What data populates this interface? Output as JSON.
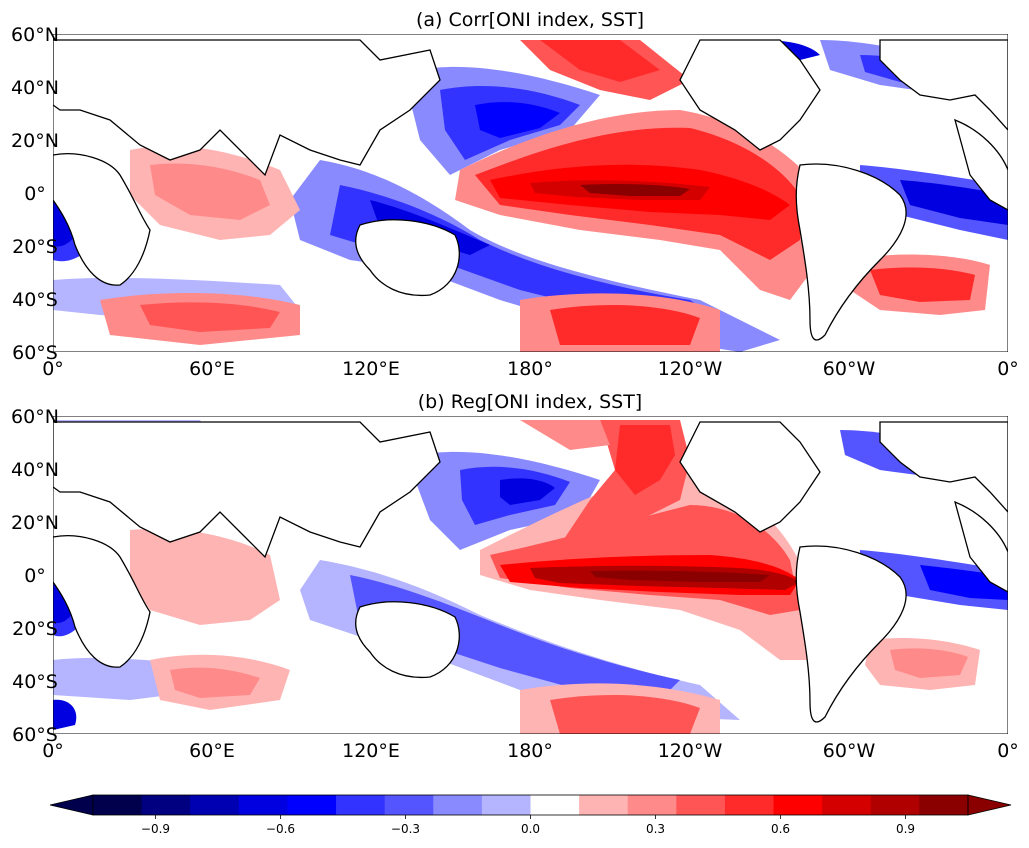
{
  "panels": [
    {
      "title": "(a) Corr[ONI index, SST]",
      "x_ticks": [
        "0°",
        "60°E",
        "120°E",
        "180°",
        "120°W",
        "60°W",
        "0°"
      ],
      "y_ticks": [
        "60°N",
        "40°N",
        "20°N",
        "0°",
        "20°S",
        "40°S",
        "60°S"
      ]
    },
    {
      "title": "(b) Reg[ONI index, SST]",
      "x_ticks": [
        "0°",
        "60°E",
        "120°E",
        "180°",
        "120°W",
        "60°W",
        "0°"
      ],
      "y_ticks": [
        "60°N",
        "40°N",
        "20°N",
        "0°",
        "20°S",
        "40°S",
        "60°S"
      ]
    }
  ],
  "colorbar": {
    "ticks": [
      "−0.9",
      "−0.6",
      "−0.3",
      "0.0",
      "0.3",
      "0.6",
      "0.9"
    ],
    "levels": [
      -1.05,
      -0.9,
      -0.75,
      -0.6,
      -0.45,
      -0.3,
      -0.15,
      0.15,
      0.3,
      0.45,
      0.6,
      0.75,
      0.9,
      1.05
    ],
    "colors": [
      "#00004d",
      "#000080",
      "#0000b3",
      "#0000e0",
      "#0000ff",
      "#3333ff",
      "#5555ff",
      "#8a8aff",
      "#b4b4ff",
      "#ffffff",
      "#ffb4b4",
      "#ff8a8a",
      "#ff5555",
      "#ff2a2a",
      "#ff0000",
      "#d40000",
      "#b00000",
      "#8a0000"
    ],
    "extend": "both"
  },
  "colors": {
    "land": "#ffffff",
    "coastline": "#000000"
  }
}
